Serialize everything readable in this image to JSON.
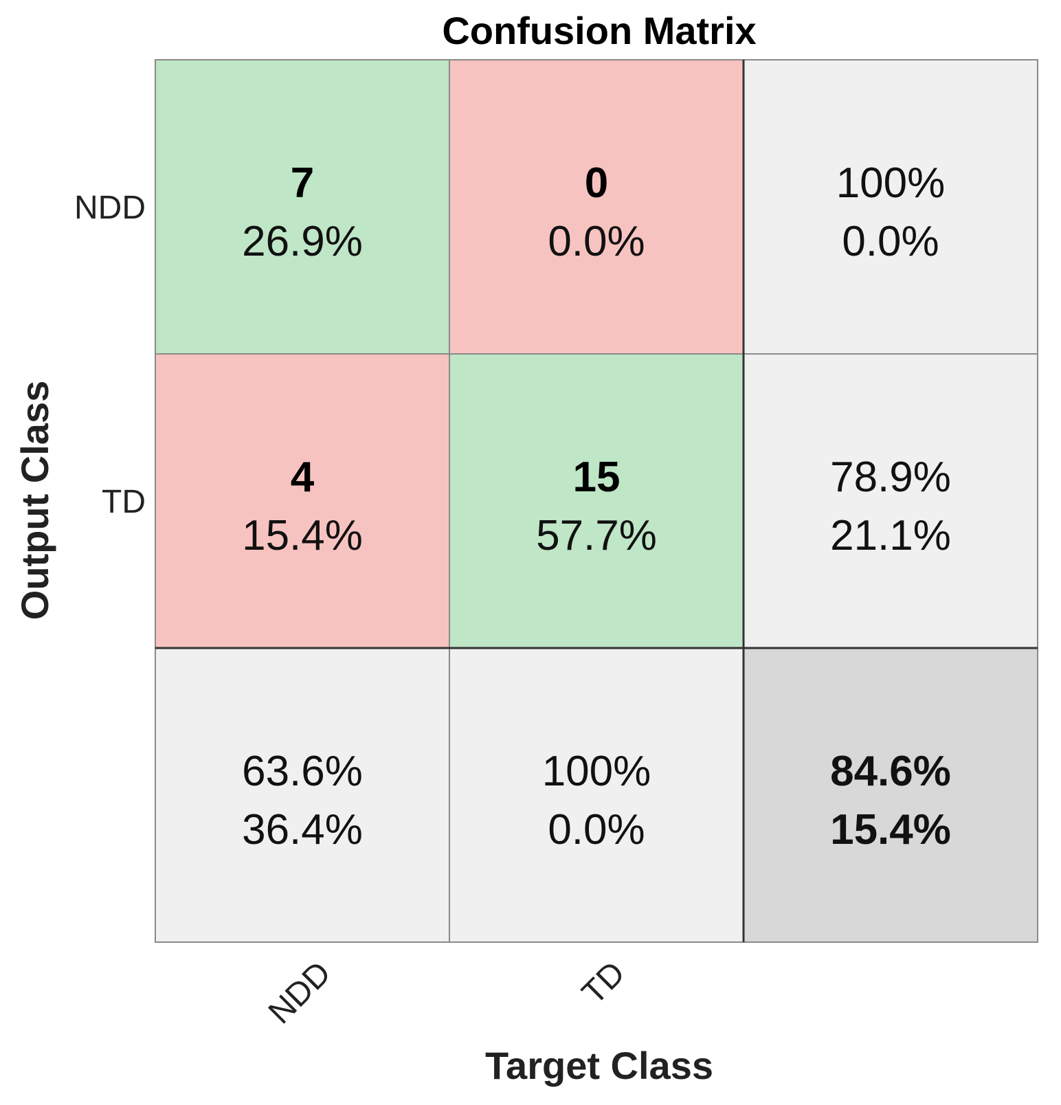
{
  "chart_data": {
    "type": "heatmap",
    "title": "Confusion Matrix",
    "xlabel": "Target Class",
    "ylabel": "Output Class",
    "classes": [
      "NDD",
      "TD"
    ],
    "cells": [
      [
        {
          "count": "7",
          "percent": "26.9%"
        },
        {
          "count": "0",
          "percent": "0.0%"
        }
      ],
      [
        {
          "count": "4",
          "percent": "15.4%"
        },
        {
          "count": "15",
          "percent": "57.7%"
        }
      ]
    ],
    "row_summary": [
      {
        "correct": "100%",
        "incorrect": "0.0%"
      },
      {
        "correct": "78.9%",
        "incorrect": "21.1%"
      }
    ],
    "column_summary": [
      {
        "correct": "63.6%",
        "incorrect": "36.4%"
      },
      {
        "correct": "100%",
        "incorrect": "0.0%"
      }
    ],
    "overall": {
      "correct": "84.6%",
      "incorrect": "15.4%"
    },
    "colors": {
      "correct_cell": "#bfe6c6",
      "incorrect_cell": "#f7c3c0",
      "summary_cell": "#f0f0f0",
      "overall_cell": "#d8d8d8",
      "good_text": "#24a53c",
      "bad_text": "#e0302e"
    }
  }
}
